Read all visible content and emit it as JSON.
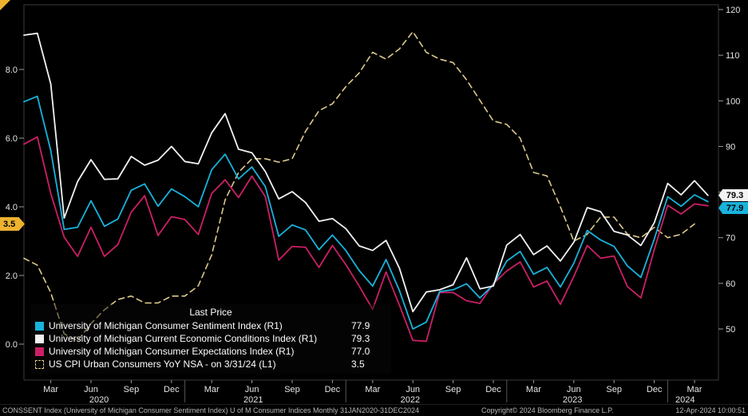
{
  "legend": {
    "title": "Last Price",
    "items": [
      {
        "label": "University of Michigan Consumer Sentiment Index  (R1)",
        "value": "77.9",
        "color": "#18b3dc",
        "dashed": false
      },
      {
        "label": "University of Michigan Current Economic Conditions Index  (R1)",
        "value": "79.3",
        "color": "#f2f2f2",
        "dashed": false
      },
      {
        "label": "University of Michigan Consumer Expectations Index  (R1)",
        "value": "77.0",
        "color": "#cc1f66",
        "dashed": false
      },
      {
        "label": "US CPI Urban Consumers YoY NSA -  on 3/31/24  (L1)",
        "value": "3.5",
        "color": "#dcc98a",
        "dashed": true
      }
    ]
  },
  "axis_markers": {
    "left_last": {
      "value": "3.5",
      "color": "#eeb22f"
    },
    "right_last": [
      {
        "value": "79.3",
        "color": "#f2f2f2"
      },
      {
        "value": "77.9",
        "color": "#18b3dc"
      }
    ]
  },
  "footer": {
    "left": "CONSSENT Index (University of Michigan Consumer Sentiment Index) U of M Consumer Indices  Monthly 31JAN2020-31DEC2024",
    "center": "Copyright© 2024 Bloomberg Finance L.P.",
    "right": "12-Apr-2024 10:00:51"
  },
  "chart_data": {
    "type": "line",
    "title": "",
    "frequency": "monthly",
    "x_months": [
      "Jan-20",
      "Feb-20",
      "Mar-20",
      "Apr-20",
      "May-20",
      "Jun-20",
      "Jul-20",
      "Aug-20",
      "Sep-20",
      "Oct-20",
      "Nov-20",
      "Dec-20",
      "Jan-21",
      "Feb-21",
      "Mar-21",
      "Apr-21",
      "May-21",
      "Jun-21",
      "Jul-21",
      "Aug-21",
      "Sep-21",
      "Oct-21",
      "Nov-21",
      "Dec-21",
      "Jan-22",
      "Feb-22",
      "Mar-22",
      "Apr-22",
      "May-22",
      "Jun-22",
      "Jul-22",
      "Aug-22",
      "Sep-22",
      "Oct-22",
      "Nov-22",
      "Dec-22",
      "Jan-23",
      "Feb-23",
      "Mar-23",
      "Apr-23",
      "May-23",
      "Jun-23",
      "Jul-23",
      "Aug-23",
      "Sep-23",
      "Oct-23",
      "Nov-23",
      "Dec-23",
      "Jan-24",
      "Feb-24",
      "Mar-24",
      "Apr-24"
    ],
    "series": [
      {
        "id": "umich-sentiment",
        "name": "University of Michigan Consumer Sentiment Index",
        "axis": "R1",
        "color": "#18b3dc",
        "dashed": false,
        "width": 1.8,
        "last": 77.9,
        "values": [
          99.8,
          101.0,
          89.1,
          71.8,
          72.3,
          78.1,
          72.5,
          74.1,
          80.4,
          81.8,
          76.9,
          80.7,
          79.0,
          76.8,
          84.9,
          88.3,
          82.9,
          85.5,
          81.2,
          70.3,
          72.8,
          71.7,
          67.4,
          70.6,
          67.2,
          62.8,
          59.4,
          65.2,
          58.4,
          50.0,
          51.5,
          58.2,
          58.6,
          59.9,
          56.8,
          59.7,
          64.9,
          67.0,
          62.0,
          63.5,
          59.2,
          64.4,
          71.6,
          69.5,
          68.1,
          63.8,
          61.3,
          69.7,
          79.0,
          76.9,
          79.4,
          77.9
        ]
      },
      {
        "id": "umich-conditions",
        "name": "University of Michigan Current Economic Conditions Index",
        "axis": "R1",
        "color": "#f2f2f2",
        "dashed": false,
        "width": 1.8,
        "last": 79.3,
        "values": [
          114.4,
          114.8,
          103.7,
          74.3,
          82.3,
          87.1,
          82.8,
          82.9,
          87.8,
          85.9,
          87.0,
          90.0,
          86.7,
          86.2,
          93.0,
          97.2,
          89.4,
          88.6,
          84.5,
          78.5,
          80.1,
          77.7,
          73.6,
          74.2,
          72.0,
          68.2,
          67.2,
          69.4,
          63.3,
          53.8,
          58.1,
          58.6,
          59.7,
          65.6,
          58.8,
          59.4,
          68.4,
          70.7,
          66.3,
          68.2,
          64.9,
          69.0,
          76.6,
          75.7,
          71.4,
          70.6,
          68.3,
          73.3,
          81.9,
          79.4,
          82.5,
          79.3
        ]
      },
      {
        "id": "umich-expectations",
        "name": "University of Michigan Consumer Expectations Index",
        "axis": "R1",
        "color": "#cc1f66",
        "dashed": false,
        "width": 1.8,
        "last": 77.0,
        "values": [
          90.5,
          92.1,
          79.7,
          70.1,
          65.9,
          72.3,
          65.9,
          68.5,
          75.6,
          79.2,
          70.5,
          74.6,
          74.0,
          70.7,
          79.7,
          82.7,
          78.8,
          83.5,
          79.0,
          65.1,
          68.1,
          67.9,
          63.5,
          68.3,
          64.1,
          59.4,
          54.3,
          62.5,
          55.2,
          47.5,
          47.3,
          58.0,
          58.0,
          56.2,
          55.6,
          59.9,
          62.7,
          64.7,
          59.2,
          60.5,
          55.4,
          61.5,
          68.3,
          65.5,
          66.0,
          59.3,
          56.8,
          67.4,
          77.1,
          75.2,
          77.4,
          77.0
        ]
      },
      {
        "id": "us-cpi-yoy",
        "name": "US CPI Urban Consumers YoY NSA",
        "axis": "L1",
        "color": "#dcc98a",
        "dashed": true,
        "width": 1.6,
        "last": 3.5,
        "values": [
          2.5,
          2.3,
          1.5,
          0.3,
          0.1,
          0.6,
          1.0,
          1.3,
          1.4,
          1.2,
          1.2,
          1.4,
          1.4,
          1.7,
          2.6,
          4.2,
          5.0,
          5.4,
          5.4,
          5.3,
          5.4,
          6.2,
          6.8,
          7.0,
          7.5,
          7.9,
          8.5,
          8.3,
          8.6,
          9.1,
          8.5,
          8.3,
          8.2,
          7.7,
          7.1,
          6.5,
          6.4,
          6.0,
          5.0,
          4.9,
          4.0,
          3.0,
          3.2,
          3.7,
          3.7,
          3.2,
          3.1,
          3.4,
          3.1,
          3.2,
          3.5,
          null
        ]
      }
    ],
    "left_axis": {
      "side": "L1",
      "ticks": [
        0,
        2,
        4,
        6,
        8
      ],
      "approx_range": [
        -0.9,
        9.9
      ]
    },
    "right_axis": {
      "side": "R1",
      "ticks": [
        50,
        60,
        70,
        80,
        90,
        100,
        110,
        120
      ],
      "approx_range": [
        38.8,
        121
      ]
    },
    "x_ticks": [
      {
        "i": 2,
        "label": "Mar"
      },
      {
        "i": 5,
        "label": "Jun"
      },
      {
        "i": 8,
        "label": "Sep"
      },
      {
        "i": 11,
        "label": "Dec"
      },
      {
        "i": 14,
        "label": "Mar"
      },
      {
        "i": 17,
        "label": "Jun"
      },
      {
        "i": 20,
        "label": "Sep"
      },
      {
        "i": 23,
        "label": "Dec"
      },
      {
        "i": 26,
        "label": "Mar"
      },
      {
        "i": 29,
        "label": "Jun"
      },
      {
        "i": 32,
        "label": "Sep"
      },
      {
        "i": 35,
        "label": "Dec"
      },
      {
        "i": 38,
        "label": "Mar"
      },
      {
        "i": 41,
        "label": "Jun"
      },
      {
        "i": 44,
        "label": "Sep"
      },
      {
        "i": 47,
        "label": "Dec"
      },
      {
        "i": 50,
        "label": "Mar"
      }
    ],
    "year_labels": [
      {
        "i": 5.6,
        "label": "2020"
      },
      {
        "i": 17.1,
        "label": "2021"
      },
      {
        "i": 28.8,
        "label": "2022"
      },
      {
        "i": 40.9,
        "label": "2023"
      },
      {
        "i": 49.3,
        "label": "2024"
      }
    ],
    "year_separators": [
      12,
      24,
      36,
      48
    ],
    "grid": "off",
    "legend_position": "bottom-left"
  }
}
